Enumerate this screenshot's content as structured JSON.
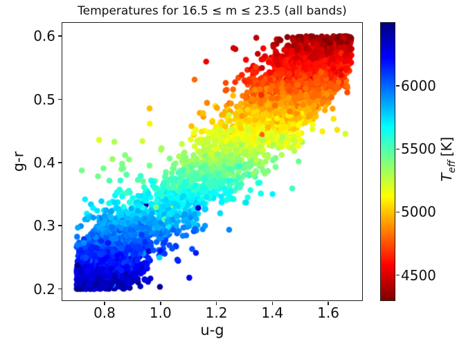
{
  "figure": {
    "background": "#ffffff",
    "text_color": "#111111",
    "frame_color": "#1c1c1c"
  },
  "chart_data": {
    "type": "scatter",
    "title": "Temperatures for 16.5 ≤ m ≤ 23.5 (all bands)",
    "xlabel": "u-g",
    "ylabel": "g-r",
    "xlim": [
      0.649,
      1.721
    ],
    "ylim": [
      0.182,
      0.621
    ],
    "x_ticks": [
      0.8,
      1.0,
      1.2,
      1.4,
      1.6
    ],
    "y_ticks": [
      0.2,
      0.3,
      0.4,
      0.5,
      0.6
    ],
    "grid": false,
    "marker": {
      "radius_px": 4.3,
      "alpha": 1.0,
      "edge": "none"
    },
    "colorbar": {
      "label_symbol": "T",
      "label_subscript": "eff",
      "label_unit": "[K]",
      "vmin": 4300,
      "vmax": 6500,
      "ticks": [
        4500,
        5000,
        5500,
        6000
      ],
      "colormap": "jet_reversed",
      "orientation": "vertical",
      "position": "right"
    },
    "points_model": {
      "description": "Dense stellar color-color scatter (~6000 stars). g-r rises roughly linearly with u-g from (0.70,0.20) to (1.67,0.60); T_eff decreases linearly with g-r: ~6420 K (dark blue) at g-r=0.2 down to ~4350 K (dark red) at g-r=0.6. Dense clumps at both band ends, sharp truncation at g-r=0.2 and 0.6.",
      "n": 6000,
      "seed": 42,
      "u_range": [
        0.7,
        1.685
      ],
      "gr_range": [
        0.2,
        0.6
      ],
      "trend_slope": 0.444,
      "trend_intercept": -0.133,
      "sigma": 0.036,
      "outlier_frac": 0.035,
      "outlier_min": 0.04,
      "outlier_sigma": 0.07,
      "outlier_up_frac": 0.78,
      "clump_blue": {
        "frac": 0.3,
        "mean": 0.8,
        "sigma": 0.065
      },
      "clump_red": {
        "frac": 0.32,
        "mean": 1.47,
        "sigma": 0.115
      },
      "temp_at_gr_min": 6420,
      "temp_slope_per_gr": -5175,
      "temp_noise": 55,
      "temp_outlier_frac": 0.02,
      "temp_outlier_noise": 250
    }
  }
}
